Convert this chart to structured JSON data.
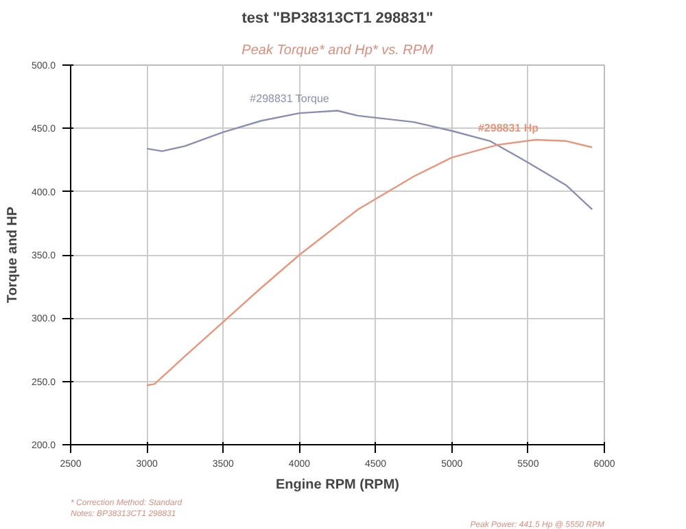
{
  "chart_data": {
    "type": "line",
    "title": "test \"BP38313CT1 298831\"",
    "subtitle": "Peak Torque* and Hp* vs. RPM",
    "xlabel": "Engine RPM (RPM)",
    "ylabel": "Torque and HP",
    "xlim": [
      2500,
      6000
    ],
    "xticks": [
      2500,
      3000,
      3500,
      4000,
      4500,
      5000,
      5500,
      6000
    ],
    "ylim": [
      200,
      500
    ],
    "yticks": [
      {
        "value": 200,
        "label": "200.0"
      },
      {
        "value": 250,
        "label": "250.0"
      },
      {
        "value": 300,
        "label": "300.0"
      },
      {
        "value": 350,
        "label": "350.0"
      },
      {
        "value": 400,
        "label": "400.0"
      },
      {
        "value": 450,
        "label": "450.0"
      },
      {
        "value": 500,
        "label": "500.0"
      }
    ],
    "grid": true,
    "series": [
      {
        "name": "#298831 Torque",
        "color": "#8a8fb0",
        "x": [
          3000,
          3100,
          3250,
          3500,
          3750,
          4000,
          4250,
          4385,
          4750,
          5000,
          5250,
          5500,
          5750,
          5920
        ],
        "values": [
          434,
          432,
          436,
          447,
          456,
          462,
          464,
          460,
          455,
          448,
          440,
          423,
          405,
          386
        ]
      },
      {
        "name": "#298831 Hp",
        "color": "#e8957c",
        "x": [
          3000,
          3050,
          3250,
          3500,
          3750,
          4000,
          4385,
          4750,
          5000,
          5300,
          5550,
          5750,
          5920
        ],
        "values": [
          247,
          248,
          270,
          297,
          324,
          350,
          386,
          412,
          427,
          437,
          441,
          440,
          435
        ]
      }
    ],
    "annotations": [
      "* Correction Method: Standard",
      "Notes: BP38313CT1 298831",
      "Peak Power: 441.5 Hp @ 5550 RPM"
    ]
  }
}
